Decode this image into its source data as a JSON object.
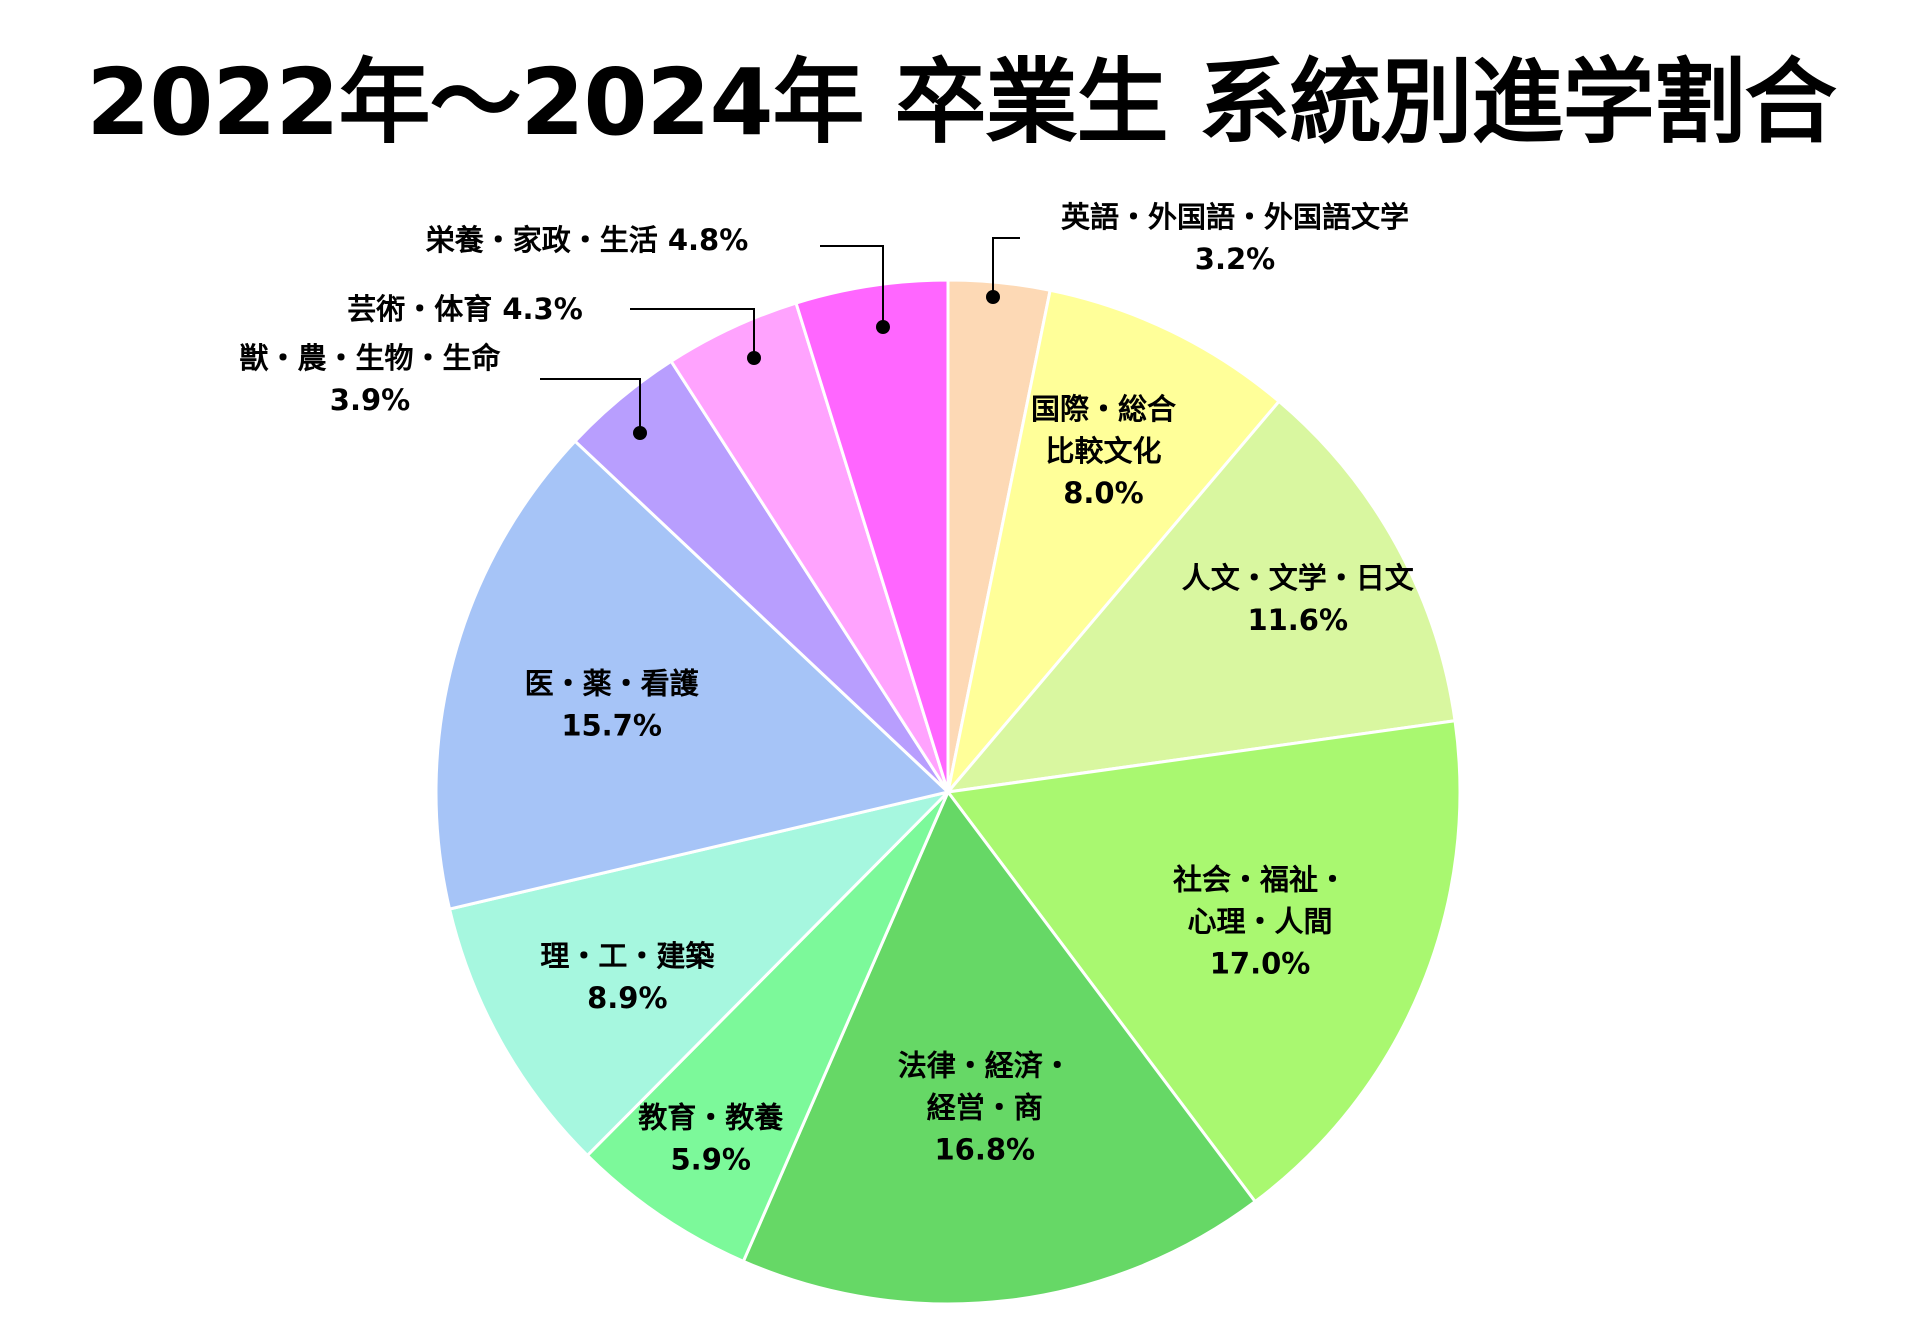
{
  "chart_data": {
    "type": "pie",
    "title": "2022年～2024年 卒業生 系統別進学割合",
    "slices": [
      {
        "label_lines": [
          "英語・外国語・外国語文学",
          "3.2%"
        ],
        "value": 3.2,
        "color": "#FDD9B5"
      },
      {
        "label_lines": [
          "国際・総合",
          "比較文化",
          "8.0%"
        ],
        "value": 8.0,
        "color": "#FFFF99"
      },
      {
        "label_lines": [
          "人文・文学・日文",
          "11.6%"
        ],
        "value": 11.6,
        "color": "#D9F7A0"
      },
      {
        "label_lines": [
          "社会・福祉・",
          "心理・人間",
          "17.0%"
        ],
        "value": 17.0,
        "color": "#A9F870"
      },
      {
        "label_lines": [
          "法律・経済・",
          "経営・商",
          "16.8%"
        ],
        "value": 16.8,
        "color": "#66D866"
      },
      {
        "label_lines": [
          "教育・教養",
          "5.9%"
        ],
        "value": 5.9,
        "color": "#7CF99A"
      },
      {
        "label_lines": [
          "理・工・建築",
          "8.9%"
        ],
        "value": 8.9,
        "color": "#A6F7DF"
      },
      {
        "label_lines": [
          "医・薬・看護",
          "15.7%"
        ],
        "value": 15.7,
        "color": "#A6C4F7"
      },
      {
        "label_lines": [
          "獣・農・生物・生命",
          "3.9%"
        ],
        "value": 3.9,
        "color": "#B89EFE"
      },
      {
        "label_lines": [
          "芸術・体育 4.3%"
        ],
        "value": 4.3,
        "color": "#FFA3FE"
      },
      {
        "label_lines": [
          "栄養・家政・生活 4.8%"
        ],
        "value": 4.8,
        "color": "#FF66FF"
      }
    ],
    "start": "12 o'clock",
    "direction": "clockwise",
    "legend": "none"
  }
}
